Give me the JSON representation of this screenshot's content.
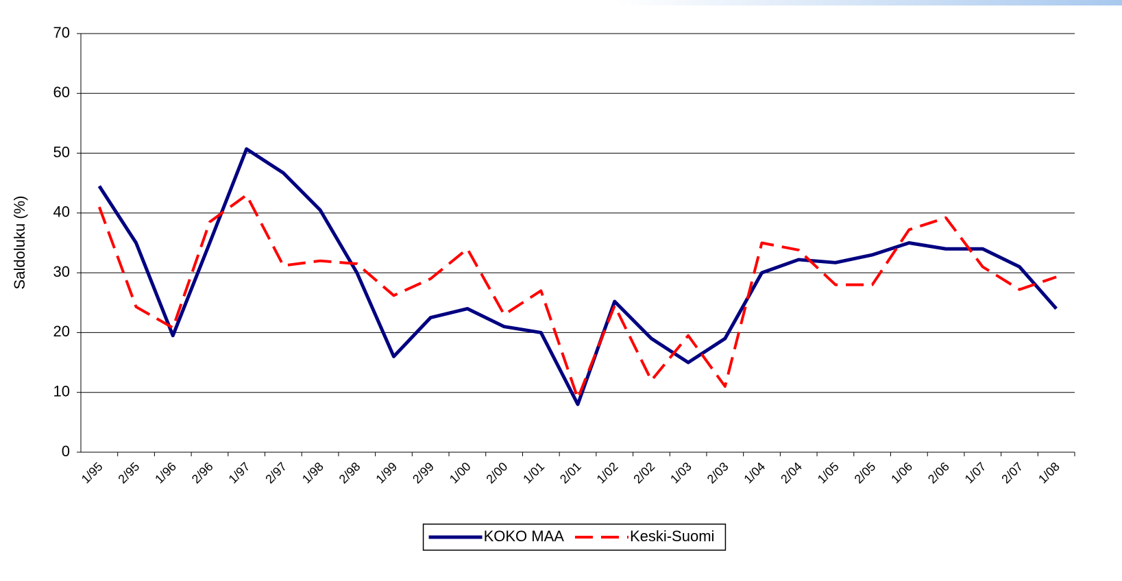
{
  "chart_data": {
    "type": "line",
    "y_label": "Saldoluku (%)",
    "categories": [
      "1/95",
      "2/95",
      "1/96",
      "2/96",
      "1/97",
      "2/97",
      "1/98",
      "2/98",
      "1/99",
      "2/99",
      "1/00",
      "2/00",
      "1/01",
      "2/01",
      "1/02",
      "2/02",
      "1/03",
      "2/03",
      "1/04",
      "2/04",
      "1/05",
      "2/05",
      "1/06",
      "2/06",
      "1/07",
      "2/07",
      "1/08"
    ],
    "series": [
      {
        "name": "KOKO MAA",
        "color": "#000080",
        "dash": "solid",
        "values": [
          44.5,
          35,
          19.5,
          35,
          50.7,
          46.7,
          40.5,
          30,
          16,
          22.5,
          24,
          21,
          20,
          8,
          25.2,
          19,
          15,
          19,
          30,
          32.2,
          31.7,
          33,
          35,
          34,
          34,
          31,
          24
        ]
      },
      {
        "name": "Keski-Suomi",
        "color": "#ff0000",
        "dash": "dashed",
        "values": [
          41,
          24.3,
          20.8,
          38.5,
          43,
          31.2,
          32,
          31.5,
          26.2,
          29,
          34,
          23,
          27,
          9,
          24.5,
          12,
          19.5,
          11,
          35,
          33.8,
          28,
          28,
          37.2,
          39.2,
          31,
          27.2,
          29.3
        ]
      }
    ],
    "ylim": [
      0,
      70
    ],
    "yticks": [
      0,
      10,
      20,
      30,
      40,
      50,
      60,
      70
    ],
    "grid": true,
    "legend": "bottom"
  }
}
